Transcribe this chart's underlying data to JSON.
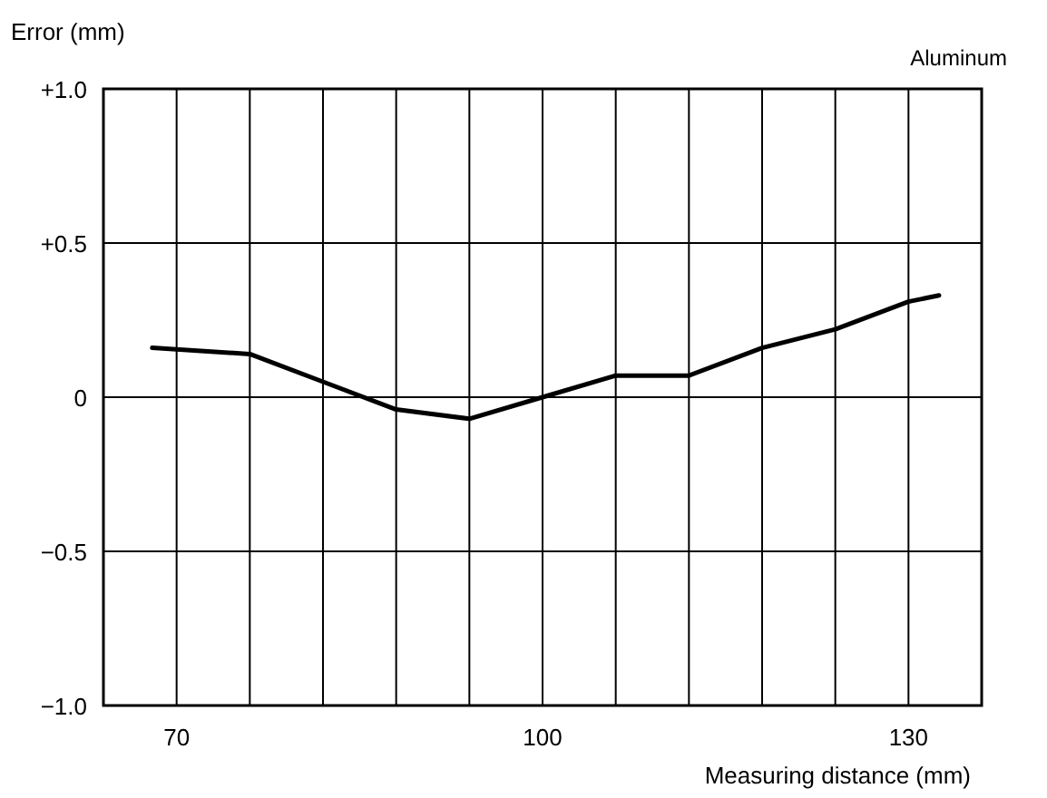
{
  "chart_data": {
    "type": "line",
    "title": "Aluminum",
    "xlabel": "Measuring distance (mm)",
    "ylabel": "Error (mm)",
    "x": [
      68,
      76,
      82,
      88,
      94,
      100,
      106,
      112,
      118,
      124,
      130,
      132.5
    ],
    "series": [
      {
        "color": "#000000",
        "values": [
          0.16,
          0.14,
          0.05,
          -0.04,
          -0.07,
          0,
          0.07,
          0.07,
          0.16,
          0.22,
          0.31,
          0.33
        ]
      }
    ],
    "xlim": [
      64,
      136
    ],
    "xticks": [
      {
        "value": 64,
        "label": null
      },
      {
        "value": 70,
        "label": "70"
      },
      {
        "value": 76,
        "label": null
      },
      {
        "value": 82,
        "label": null
      },
      {
        "value": 88,
        "label": null
      },
      {
        "value": 94,
        "label": null
      },
      {
        "value": 100,
        "label": "100"
      },
      {
        "value": 106,
        "label": null
      },
      {
        "value": 112,
        "label": null
      },
      {
        "value": 118,
        "label": null
      },
      {
        "value": 124,
        "label": null
      },
      {
        "value": 130,
        "label": "130"
      },
      {
        "value": 136,
        "label": null
      }
    ],
    "ylim": [
      -1,
      1
    ],
    "yticks": [
      {
        "value": -1,
        "label": "−1.0"
      },
      {
        "value": -0.5,
        "label": "−0.5"
      },
      0,
      {
        "value": 0.5,
        "label": "+0.5"
      },
      {
        "value": 1,
        "label": "+1.0"
      }
    ],
    "grid": true,
    "marker": "none",
    "line_style": "solid"
  }
}
